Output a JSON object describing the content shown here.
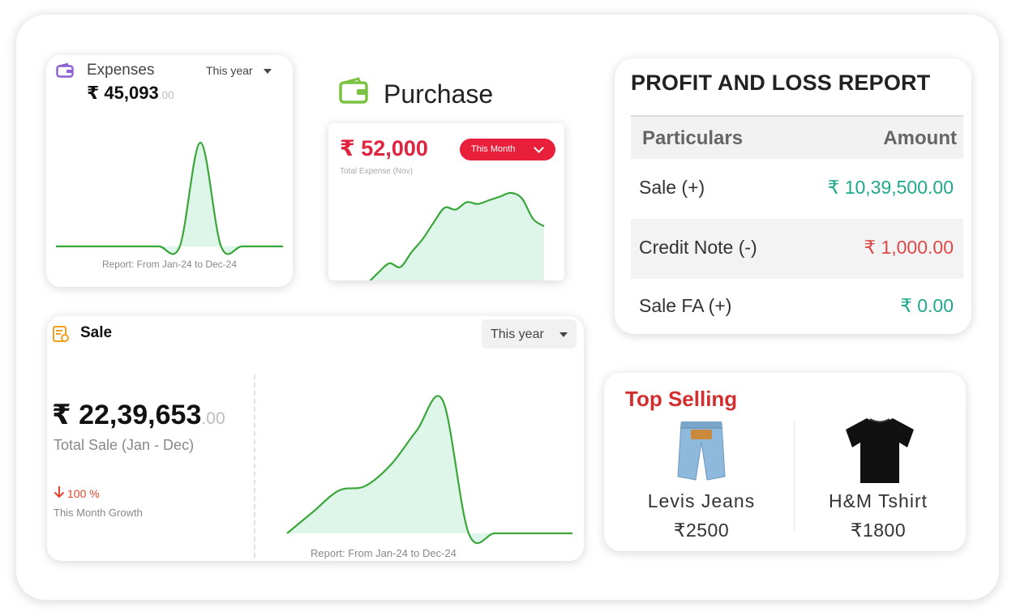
{
  "expenses": {
    "title": "Expenses",
    "period": "This year",
    "amount": "₹ 45,093",
    "amount_decimals": ".00",
    "report": "Report: From Jan-24 to Dec-24",
    "icon": "wallet-icon",
    "accent": "#8e5fd1"
  },
  "purchase": {
    "title": "Purchase",
    "amount": "₹ 52,000",
    "subtitle": "Total Expense (Nov)",
    "period": "This Month",
    "icon": "wallet-icon",
    "accent": "#e8203b"
  },
  "profit_loss": {
    "title": "PROFIT AND LOSS REPORT",
    "columns": [
      "Particulars",
      "Amount"
    ],
    "rows": [
      {
        "label": "Sale (+)",
        "amount": "₹ 10,39,500.00",
        "color": "#1fa98c"
      },
      {
        "label": "Credit Note (-)",
        "amount": "₹ 1,000.00",
        "color": "#e04848"
      },
      {
        "label": "Sale FA (+)",
        "amount": "₹ 0.00",
        "color": "#1fa98c"
      }
    ]
  },
  "sale": {
    "title": "Sale",
    "period": "This year",
    "amount": "₹ 22,39,653",
    "amount_decimals": ".00",
    "subtitle": "Total Sale (Jan - Dec)",
    "growth": "100 %",
    "growth_label": "This Month Growth",
    "report": "Report: From Jan-24 to Dec-24",
    "icon": "receipt-icon"
  },
  "top_selling": {
    "title": "Top Selling",
    "items": [
      {
        "name": "Levis Jeans",
        "price": "₹2500",
        "icon": "jeans-icon"
      },
      {
        "name": "H&M Tshirt",
        "price": "₹1800",
        "icon": "tshirt-icon"
      }
    ]
  },
  "colors": {
    "line": "#3aa63a",
    "fill": "#d8f5e6",
    "brand_red": "#e8203b"
  },
  "chart_data": [
    {
      "type": "area",
      "name_ref": "expenses",
      "x": [
        1,
        2,
        3,
        4,
        5,
        6,
        7,
        8,
        9,
        10,
        11,
        12
      ],
      "values": [
        0,
        0,
        0,
        0,
        0,
        0,
        0,
        45093,
        0,
        0,
        0,
        0
      ]
    },
    {
      "type": "area",
      "name_ref": "purchase",
      "values": [
        0,
        6,
        11,
        9,
        17,
        24,
        33,
        41,
        40,
        44,
        43,
        45,
        47,
        49,
        46,
        35,
        31
      ]
    },
    {
      "type": "area",
      "name_ref": "sale",
      "x": [
        1,
        2,
        3,
        4,
        5,
        6,
        7,
        8,
        9,
        10,
        11,
        12
      ],
      "values": [
        0,
        10,
        20,
        22,
        32,
        48,
        62,
        0,
        0,
        0,
        0,
        0
      ]
    }
  ]
}
